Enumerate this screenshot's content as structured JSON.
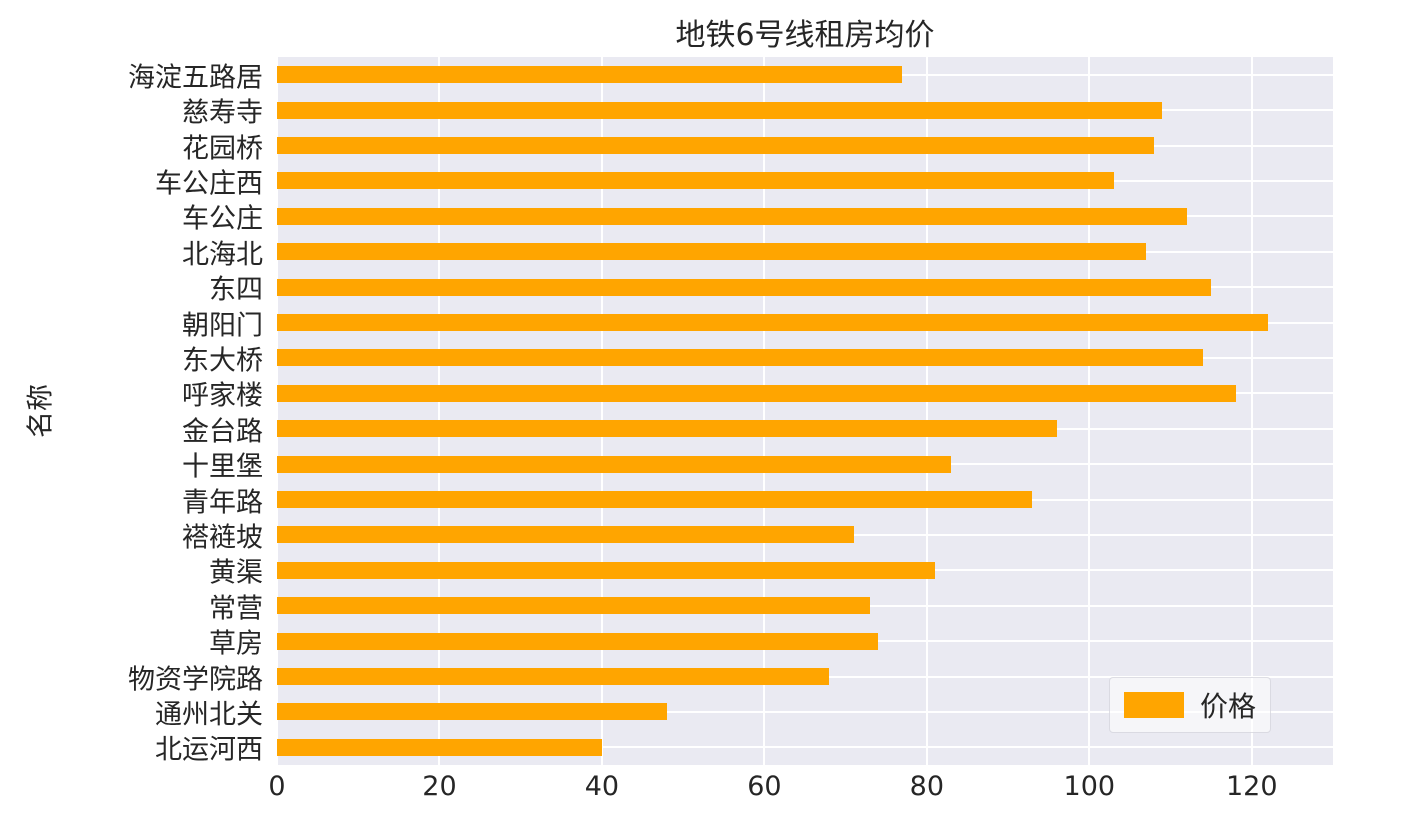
{
  "chart_data": {
    "type": "bar",
    "orientation": "horizontal",
    "title": "地铁6号线租房均价",
    "xlabel": "",
    "ylabel": "名称",
    "legend_label": "价格",
    "legend_position": "lower right",
    "grid": true,
    "categories": [
      "海淀五路居",
      "慈寿寺",
      "花园桥",
      "车公庄西",
      "车公庄",
      "北海北",
      "东四",
      "朝阳门",
      "东大桥",
      "呼家楼",
      "金台路",
      "十里堡",
      "青年路",
      "褡裢坡",
      "黄渠",
      "常营",
      "草房",
      "物资学院路",
      "通州北关",
      "北运河西"
    ],
    "values": [
      77,
      109,
      108,
      103,
      112,
      107,
      115,
      122,
      114,
      118,
      96,
      83,
      93,
      71,
      81,
      73,
      74,
      68,
      48,
      40
    ],
    "xlim": [
      0,
      130
    ],
    "xticks": [
      0,
      20,
      40,
      60,
      80,
      100,
      120
    ],
    "colors": {
      "bar": "#FFA500",
      "plot_bg": "#EAEAF2",
      "grid": "#FFFFFF",
      "text": "#262626"
    }
  }
}
